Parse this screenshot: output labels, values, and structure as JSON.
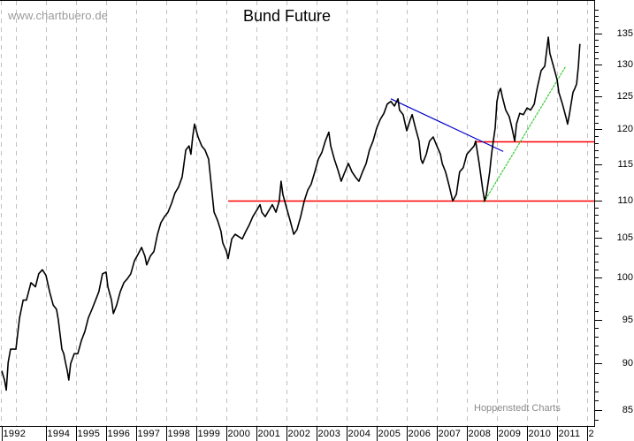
{
  "header": {
    "site": "www.chartbuero.de",
    "title": "Bund Future",
    "watermark": "Hoppenstedt Charts"
  },
  "colors": {
    "price": "#000000",
    "support_resistance": "#ff0000",
    "downtrend": "#0000cc",
    "uptrend": "#33cc33",
    "grid": "#c0c0c0",
    "axis": "#000000"
  },
  "chart_data": {
    "type": "line",
    "title": "Bund Future",
    "xlabel": "",
    "ylabel": "",
    "y_scale": "log",
    "ylim": [
      84,
      139
    ],
    "y_ticks": [
      85,
      90,
      95,
      100,
      105,
      110,
      115,
      120,
      125,
      130,
      135
    ],
    "y_axis_position": "right",
    "x_tick_labels": [
      "1992",
      "1994",
      "1995",
      "1996",
      "1997",
      "1998",
      "1999",
      "2000",
      "2001",
      "2002",
      "2003",
      "2004",
      "2005",
      "2006",
      "2007",
      "2008",
      "2009",
      "2010",
      "2011",
      "2"
    ],
    "x_ticks": [
      1992.5,
      1994,
      1995,
      1996,
      1997,
      1998,
      1999,
      2000,
      2001,
      2002,
      2003,
      2004,
      2005,
      2006,
      2007,
      2008,
      2009,
      2010,
      2011,
      2012
    ],
    "xlim": [
      1992.5,
      2012.2
    ],
    "grid": {
      "vertical": true,
      "horizontal": false,
      "style": "dashed"
    },
    "legend": null,
    "series": [
      {
        "name": "Bund Future",
        "color": "#000000",
        "points": [
          [
            1992.53,
            89.2
          ],
          [
            1992.62,
            88.2
          ],
          [
            1992.68,
            87.1
          ],
          [
            1992.74,
            90.1
          ],
          [
            1992.82,
            91.6
          ],
          [
            1993.0,
            91.6
          ],
          [
            1993.12,
            95.2
          ],
          [
            1993.24,
            97.3
          ],
          [
            1993.35,
            97.3
          ],
          [
            1993.5,
            99.4
          ],
          [
            1993.65,
            98.9
          ],
          [
            1993.76,
            100.5
          ],
          [
            1993.88,
            101.0
          ],
          [
            1994.0,
            100.3
          ],
          [
            1994.12,
            98.3
          ],
          [
            1994.24,
            96.7
          ],
          [
            1994.35,
            96.2
          ],
          [
            1994.41,
            95.0
          ],
          [
            1994.53,
            91.6
          ],
          [
            1994.59,
            91.1
          ],
          [
            1994.65,
            90.1
          ],
          [
            1994.71,
            89.2
          ],
          [
            1994.76,
            88.2
          ],
          [
            1994.82,
            90.0
          ],
          [
            1994.94,
            91.1
          ],
          [
            1995.06,
            91.1
          ],
          [
            1995.18,
            92.6
          ],
          [
            1995.29,
            93.6
          ],
          [
            1995.41,
            95.2
          ],
          [
            1995.53,
            96.2
          ],
          [
            1995.65,
            97.3
          ],
          [
            1995.76,
            98.3
          ],
          [
            1995.88,
            100.5
          ],
          [
            1996.0,
            100.7
          ],
          [
            1996.06,
            98.9
          ],
          [
            1996.18,
            97.3
          ],
          [
            1996.24,
            95.7
          ],
          [
            1996.35,
            96.7
          ],
          [
            1996.47,
            98.3
          ],
          [
            1996.59,
            99.4
          ],
          [
            1996.71,
            99.9
          ],
          [
            1996.82,
            100.5
          ],
          [
            1996.94,
            102.1
          ],
          [
            1997.06,
            102.9
          ],
          [
            1997.18,
            103.8
          ],
          [
            1997.29,
            102.7
          ],
          [
            1997.35,
            101.6
          ],
          [
            1997.47,
            102.7
          ],
          [
            1997.59,
            103.3
          ],
          [
            1997.71,
            105.5
          ],
          [
            1997.82,
            107.0
          ],
          [
            1997.94,
            107.8
          ],
          [
            1998.06,
            108.4
          ],
          [
            1998.18,
            109.6
          ],
          [
            1998.29,
            111.0
          ],
          [
            1998.41,
            111.8
          ],
          [
            1998.53,
            113.2
          ],
          [
            1998.59,
            115.1
          ],
          [
            1998.65,
            117.0
          ],
          [
            1998.76,
            117.6
          ],
          [
            1998.82,
            116.4
          ],
          [
            1998.88,
            118.9
          ],
          [
            1998.94,
            120.8
          ],
          [
            1999.06,
            118.9
          ],
          [
            1999.18,
            117.6
          ],
          [
            1999.29,
            117.0
          ],
          [
            1999.41,
            115.7
          ],
          [
            1999.47,
            113.2
          ],
          [
            1999.53,
            110.8
          ],
          [
            1999.59,
            108.4
          ],
          [
            1999.71,
            107.3
          ],
          [
            1999.82,
            105.9
          ],
          [
            1999.88,
            104.4
          ],
          [
            2000.0,
            103.3
          ],
          [
            2000.06,
            102.4
          ],
          [
            2000.18,
            104.9
          ],
          [
            2000.29,
            105.5
          ],
          [
            2000.41,
            105.2
          ],
          [
            2000.53,
            104.9
          ],
          [
            2000.65,
            105.9
          ],
          [
            2000.76,
            106.7
          ],
          [
            2000.88,
            107.8
          ],
          [
            2001.0,
            108.6
          ],
          [
            2001.12,
            109.4
          ],
          [
            2001.18,
            108.4
          ],
          [
            2001.29,
            107.8
          ],
          [
            2001.41,
            108.6
          ],
          [
            2001.53,
            109.4
          ],
          [
            2001.65,
            108.4
          ],
          [
            2001.76,
            109.9
          ],
          [
            2001.82,
            112.6
          ],
          [
            2001.88,
            110.8
          ],
          [
            2002.0,
            109.0
          ],
          [
            2002.12,
            107.3
          ],
          [
            2002.24,
            105.5
          ],
          [
            2002.35,
            106.1
          ],
          [
            2002.47,
            107.8
          ],
          [
            2002.59,
            109.9
          ],
          [
            2002.71,
            111.4
          ],
          [
            2002.82,
            112.2
          ],
          [
            2002.94,
            113.9
          ],
          [
            2003.06,
            115.7
          ],
          [
            2003.18,
            116.7
          ],
          [
            2003.29,
            118.3
          ],
          [
            2003.41,
            119.6
          ],
          [
            2003.47,
            117.6
          ],
          [
            2003.59,
            115.7
          ],
          [
            2003.71,
            114.2
          ],
          [
            2003.82,
            112.6
          ],
          [
            2003.94,
            113.9
          ],
          [
            2004.06,
            115.1
          ],
          [
            2004.18,
            113.9
          ],
          [
            2004.29,
            113.2
          ],
          [
            2004.41,
            112.6
          ],
          [
            2004.53,
            113.9
          ],
          [
            2004.65,
            115.1
          ],
          [
            2004.76,
            117.0
          ],
          [
            2004.88,
            118.3
          ],
          [
            2005.0,
            120.2
          ],
          [
            2005.12,
            121.5
          ],
          [
            2005.24,
            122.4
          ],
          [
            2005.35,
            123.8
          ],
          [
            2005.47,
            124.2
          ],
          [
            2005.59,
            123.5
          ],
          [
            2005.71,
            124.6
          ],
          [
            2005.76,
            122.9
          ],
          [
            2005.88,
            122.2
          ],
          [
            2006.0,
            119.8
          ],
          [
            2006.12,
            121.5
          ],
          [
            2006.18,
            122.2
          ],
          [
            2006.29,
            120.2
          ],
          [
            2006.41,
            118.3
          ],
          [
            2006.47,
            115.7
          ],
          [
            2006.53,
            115.1
          ],
          [
            2006.65,
            116.4
          ],
          [
            2006.76,
            118.3
          ],
          [
            2006.88,
            118.9
          ],
          [
            2007.0,
            117.6
          ],
          [
            2007.12,
            116.4
          ],
          [
            2007.18,
            115.1
          ],
          [
            2007.29,
            113.9
          ],
          [
            2007.41,
            112.0
          ],
          [
            2007.53,
            109.9
          ],
          [
            2007.65,
            110.8
          ],
          [
            2007.76,
            113.9
          ],
          [
            2007.88,
            114.5
          ],
          [
            2008.0,
            116.4
          ],
          [
            2008.12,
            117.0
          ],
          [
            2008.24,
            117.6
          ],
          [
            2008.29,
            118.3
          ],
          [
            2008.41,
            115.1
          ],
          [
            2008.53,
            111.4
          ],
          [
            2008.59,
            109.9
          ],
          [
            2008.65,
            110.8
          ],
          [
            2008.76,
            113.9
          ],
          [
            2008.82,
            116.4
          ],
          [
            2008.88,
            118.3
          ],
          [
            2008.94,
            120.2
          ],
          [
            2009.0,
            124.2
          ],
          [
            2009.06,
            125.6
          ],
          [
            2009.12,
            126.2
          ],
          [
            2009.18,
            124.9
          ],
          [
            2009.29,
            122.9
          ],
          [
            2009.41,
            121.9
          ],
          [
            2009.47,
            120.8
          ],
          [
            2009.53,
            119.6
          ],
          [
            2009.59,
            118.3
          ],
          [
            2009.65,
            120.8
          ],
          [
            2009.76,
            122.4
          ],
          [
            2009.88,
            122.2
          ],
          [
            2010.0,
            123.2
          ],
          [
            2010.12,
            122.9
          ],
          [
            2010.24,
            123.8
          ],
          [
            2010.29,
            125.1
          ],
          [
            2010.35,
            126.5
          ],
          [
            2010.47,
            129.0
          ],
          [
            2010.59,
            129.7
          ],
          [
            2010.71,
            134.4
          ],
          [
            2010.76,
            131.8
          ],
          [
            2010.88,
            129.7
          ],
          [
            2011.0,
            127.6
          ],
          [
            2011.06,
            125.6
          ],
          [
            2011.18,
            123.8
          ],
          [
            2011.29,
            121.9
          ],
          [
            2011.35,
            120.8
          ],
          [
            2011.41,
            122.2
          ],
          [
            2011.53,
            125.6
          ],
          [
            2011.59,
            126.2
          ],
          [
            2011.65,
            126.9
          ],
          [
            2011.71,
            129.7
          ],
          [
            2011.76,
            133.3
          ]
        ]
      }
    ],
    "annotations": [
      {
        "type": "hline",
        "label": "support",
        "value": 109.9,
        "x_start": 2000.06,
        "x_end": 2012.2,
        "color": "#ff0000"
      },
      {
        "type": "hline",
        "label": "resistance",
        "value": 118.3,
        "x_start": 2008.29,
        "x_end": 2012.2,
        "color": "#ff0000"
      },
      {
        "type": "trendline",
        "label": "downtrend",
        "from": [
          2005.47,
          124.6
        ],
        "to": [
          2009.21,
          116.8
        ],
        "color": "#0000cc"
      },
      {
        "type": "trendline",
        "label": "uptrend",
        "from": [
          2008.56,
          109.7
        ],
        "to": [
          2011.29,
          129.7
        ],
        "color": "#33cc33",
        "style": "dashed"
      }
    ]
  }
}
